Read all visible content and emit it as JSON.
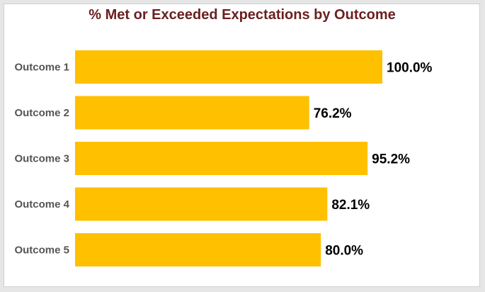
{
  "colors": {
    "bar": "#ffc000",
    "title": "#6b1f1f",
    "category_label": "#555555",
    "value_label": "#000000"
  },
  "chart_data": {
    "type": "bar",
    "orientation": "horizontal",
    "title": "% Met or Exceeded Expectations by Outcome",
    "xlabel": "",
    "ylabel": "",
    "categories": [
      "Outcome 1",
      "Outcome 2",
      "Outcome 3",
      "Outcome 4",
      "Outcome 5"
    ],
    "values": [
      100.0,
      76.2,
      95.2,
      82.1,
      80.0
    ],
    "value_labels": [
      "100.0%",
      "76.2%",
      "95.2%",
      "82.1%",
      "80.0%"
    ],
    "xlim": [
      0,
      100
    ],
    "grid": false,
    "legend": "none"
  }
}
